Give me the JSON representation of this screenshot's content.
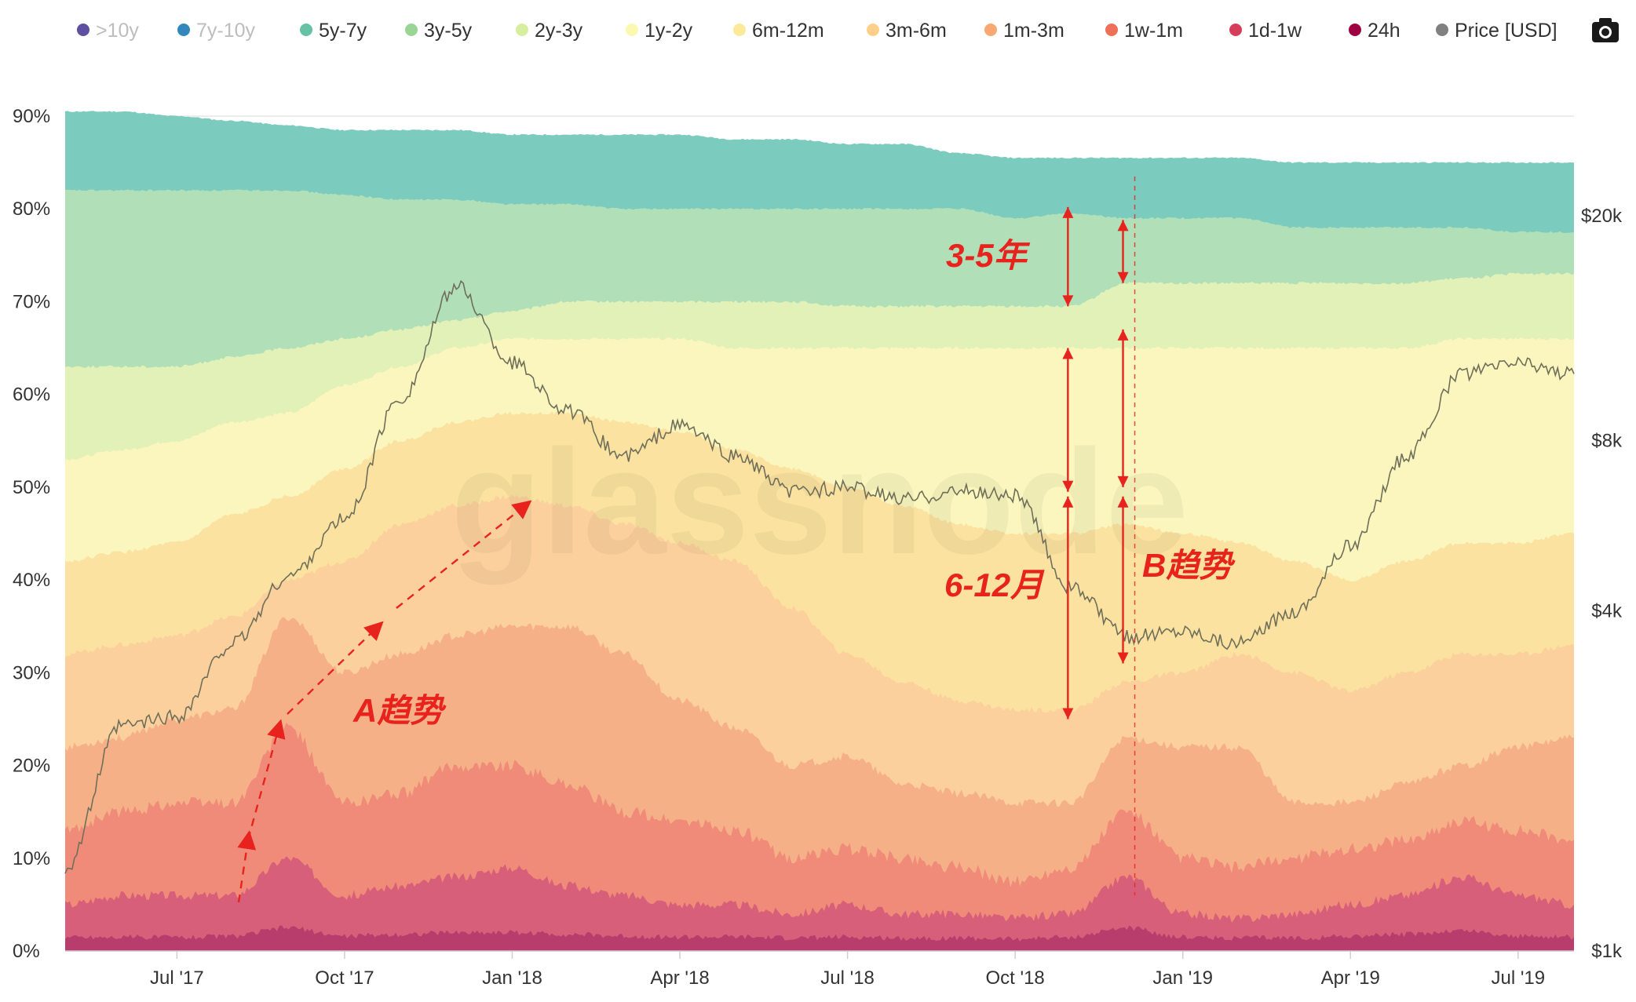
{
  "chart_data": {
    "type": "area",
    "subtype": "stacked-100-percent-with-price-overlay",
    "watermark": "glassnode",
    "legend": [
      {
        "name": ">10y",
        "color": "#5e4fa2",
        "visible": false
      },
      {
        "name": "7y-10y",
        "color": "#3288bd",
        "visible": false
      },
      {
        "name": "5y-7y",
        "color": "#66c2a5",
        "visible": true
      },
      {
        "name": "3y-5y",
        "color": "#99d594",
        "visible": true
      },
      {
        "name": "2y-3y",
        "color": "#d7ee9f",
        "visible": true
      },
      {
        "name": "1y-2y",
        "color": "#fbf8b0",
        "visible": true
      },
      {
        "name": "6m-12m",
        "color": "#fde99a",
        "visible": true
      },
      {
        "name": "3m-6m",
        "color": "#fdcf8a",
        "visible": true
      },
      {
        "name": "1m-3m",
        "color": "#f9a872",
        "visible": true
      },
      {
        "name": "1w-1m",
        "color": "#ee7058",
        "visible": true
      },
      {
        "name": "1d-1w",
        "color": "#d53e5b",
        "visible": true
      },
      {
        "name": "24h",
        "color": "#9e0142",
        "visible": true
      },
      {
        "name": "Price [USD]",
        "color": "#808080",
        "visible": true
      }
    ],
    "x": [
      "2017-05",
      "2017-06",
      "2017-07",
      "2017-08",
      "2017-09",
      "2017-10",
      "2017-11",
      "2017-12",
      "2018-01",
      "2018-02",
      "2018-03",
      "2018-04",
      "2018-05",
      "2018-06",
      "2018-07",
      "2018-08",
      "2018-09",
      "2018-10",
      "2018-11",
      "2018-12",
      "2019-01",
      "2019-02",
      "2019-03",
      "2019-04",
      "2019-05",
      "2019-06",
      "2019-07",
      "2019-08"
    ],
    "x_tick_labels": [
      "Jul '17",
      "Oct '17",
      "Jan '18",
      "Apr '18",
      "Jul '18",
      "Oct '18",
      "Jan '19",
      "Apr '19",
      "Jul '19"
    ],
    "x_tick_positions": [
      "2017-07",
      "2017-10",
      "2018-01",
      "2018-04",
      "2018-07",
      "2018-10",
      "2019-01",
      "2019-04",
      "2019-07"
    ],
    "ylim": [
      0,
      90
    ],
    "y_ticks": [
      0,
      10,
      20,
      30,
      40,
      50,
      60,
      70,
      80,
      90
    ],
    "y_tick_labels": [
      "0%",
      "10%",
      "20%",
      "30%",
      "40%",
      "50%",
      "60%",
      "70%",
      "80%",
      "90%"
    ],
    "y2_scale": "log",
    "y2lim": [
      1000,
      30000
    ],
    "y2_ticks": [
      1000,
      4000,
      8000,
      20000
    ],
    "y2_tick_labels": [
      "$1k",
      "$4k",
      "$8k",
      "$20k"
    ],
    "series_cumulative_top_pct": {
      "24h": [
        1.5,
        1.5,
        1.5,
        1.6,
        2.5,
        1.6,
        1.8,
        2.0,
        2.0,
        1.8,
        1.6,
        1.5,
        1.5,
        1.4,
        1.5,
        1.4,
        1.4,
        1.3,
        1.5,
        2.5,
        1.5,
        1.4,
        1.4,
        1.6,
        1.8,
        2.2,
        1.6,
        1.5
      ],
      "1d-1w": [
        5,
        6,
        6,
        6,
        10,
        6,
        7,
        8,
        9,
        7,
        6,
        5,
        5,
        4,
        5,
        4,
        4,
        3.5,
        4,
        8,
        4,
        3.5,
        4,
        5,
        6,
        8,
        6,
        5
      ],
      "1w-1m": [
        13,
        15,
        16,
        16,
        24,
        16,
        17,
        20,
        20,
        18,
        15,
        14,
        13,
        10,
        11,
        10,
        9,
        7.5,
        9,
        15,
        10,
        9,
        10,
        11,
        12,
        14,
        13,
        12
      ],
      "1m-3m": [
        22,
        23,
        25,
        26,
        36,
        30,
        32,
        34,
        35,
        35,
        32,
        27,
        24,
        20,
        21,
        18,
        17,
        16,
        16,
        23,
        22,
        22,
        16,
        16,
        18,
        20,
        22,
        23
      ],
      "3m-6m": [
        32,
        33,
        34,
        36,
        40,
        42,
        46,
        48,
        49,
        48,
        46,
        44,
        42,
        37,
        32,
        29,
        27,
        26,
        26,
        29,
        30,
        32,
        30,
        28,
        30,
        32,
        32,
        33
      ],
      "6m-12m": [
        42,
        43,
        44,
        47,
        49,
        52,
        55,
        57,
        58,
        58,
        57,
        56,
        54,
        52,
        50,
        48,
        46,
        45,
        45,
        46,
        45,
        44,
        42,
        40,
        42,
        44,
        44,
        45
      ],
      "1y-2y": [
        53,
        54,
        55,
        57,
        58,
        61,
        63,
        65,
        66,
        66,
        66,
        66,
        65,
        65,
        65,
        65,
        65,
        65,
        65,
        65,
        65,
        65,
        65,
        65,
        65,
        66,
        66,
        66
      ],
      "2y-3y": [
        63,
        63,
        63,
        64,
        65,
        66,
        67,
        68,
        69,
        70,
        70,
        70,
        70,
        70,
        69.5,
        69.5,
        69.5,
        69.5,
        69.5,
        72,
        72,
        72,
        72,
        72,
        72,
        72.5,
        73,
        73
      ],
      "3y-5y": [
        82,
        82,
        82,
        82,
        82,
        81.5,
        81,
        81,
        80.5,
        80.5,
        80,
        80,
        80,
        80,
        80,
        80,
        80,
        79,
        79.5,
        79,
        79,
        79,
        78,
        78,
        78,
        78,
        77.5,
        77.5
      ],
      "5y-7y": [
        90.5,
        90.5,
        90,
        89.5,
        89,
        88.5,
        88.5,
        88.5,
        88,
        88,
        88,
        88,
        87.5,
        87.5,
        87,
        87,
        86,
        85.5,
        85.5,
        85.5,
        85.5,
        85.5,
        85,
        85,
        85,
        85,
        85,
        85
      ]
    },
    "price_usd": [
      1400,
      2500,
      2600,
      3500,
      4600,
      5800,
      9500,
      15000,
      11000,
      9000,
      7500,
      8500,
      7500,
      6500,
      6600,
      6300,
      6500,
      6400,
      4400,
      3600,
      3700,
      3500,
      4000,
      5200,
      7500,
      10500,
      11000,
      10500
    ],
    "annotations": [
      {
        "text": "3-5年",
        "color": "#e8231e"
      },
      {
        "text": "6-12月",
        "color": "#e8231e"
      },
      {
        "text": "A趋势",
        "color": "#e8231e"
      },
      {
        "text": "B趋势",
        "color": "#e8231e"
      }
    ]
  },
  "toolbar": {
    "camera_icon": "camera-icon"
  }
}
